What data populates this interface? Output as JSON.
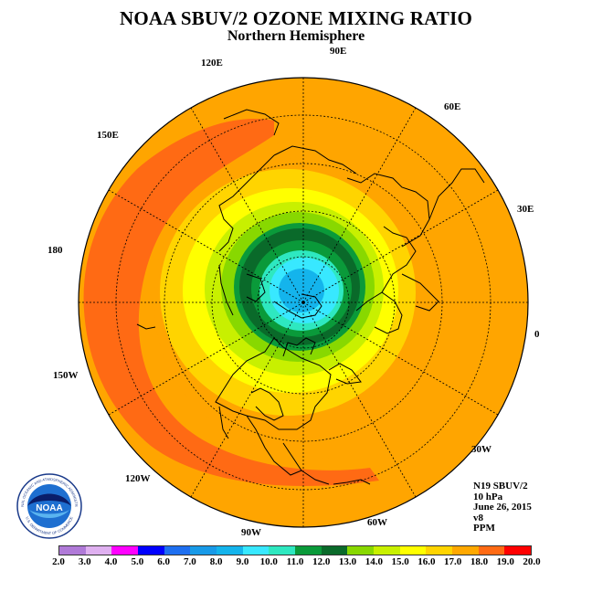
{
  "title": "NOAA SBUV/2 OZONE MIXING RATIO",
  "subtitle": "Northern Hemisphere",
  "longitude_labels": [
    "90E",
    "60E",
    "30E",
    "0",
    "30W",
    "60W",
    "90W",
    "120W",
    "150W",
    "180",
    "150E",
    "120E"
  ],
  "info": {
    "satellite": "N19 SBUV/2",
    "level": "10 hPa",
    "date": "June 26, 2015",
    "version": "v8",
    "units": "PPM"
  },
  "logo": {
    "name": "NOAA",
    "ring_text": "NATIONAL OCEANIC AND ATMOSPHERIC ADMINISTRATION",
    "bottom_text": "U.S. DEPARTMENT OF COMMERCE"
  },
  "colorbar": {
    "labels": [
      "2.0",
      "3.0",
      "4.0",
      "5.0",
      "6.0",
      "7.0",
      "8.0",
      "9.0",
      "10.0",
      "11.0",
      "12.0",
      "13.0",
      "14.0",
      "15.0",
      "16.0",
      "17.0",
      "18.0",
      "19.0",
      "20.0"
    ],
    "colors": [
      "#b07ad8",
      "#dfb0f0",
      "#ff00ff",
      "#0000ff",
      "#1e6ff0",
      "#189ae8",
      "#14b4ec",
      "#38e8ff",
      "#2ee8c0",
      "#0a9a3a",
      "#0a6a2a",
      "#88d800",
      "#c8f000",
      "#ffff00",
      "#ffd400",
      "#ffa800",
      "#ff6a14",
      "#ff0000",
      "#8a5a3a"
    ]
  },
  "colors": {
    "background_field": "#ffa500",
    "outer_band": "#ff6a14",
    "ring_dark": "#0a6a2a",
    "ring_mid": "#0a9a3a",
    "cyan_core": "#38e8ff",
    "blue_core": "#14b4ec"
  }
}
